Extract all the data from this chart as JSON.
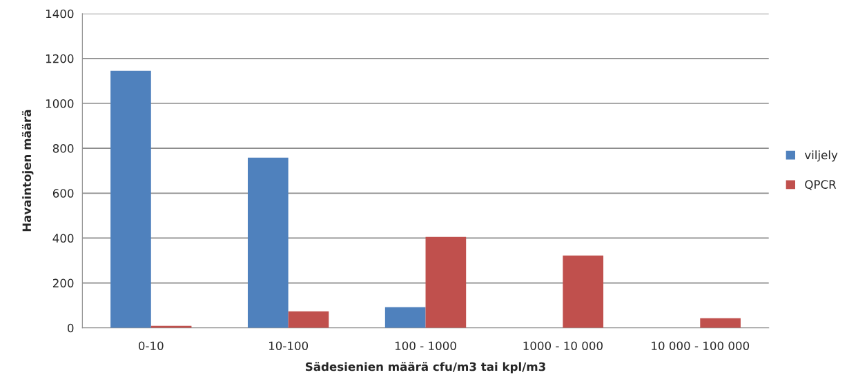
{
  "chart_data": {
    "type": "bar",
    "xlabel": "Sädesienien määrä cfu/m3 tai kpl/m3",
    "ylabel": "Havaintojen määrä",
    "categories": [
      "0-10",
      "10-100",
      "100 - 1000",
      "1000 - 10 000",
      "10 000 - 100 000"
    ],
    "series": [
      {
        "name": "viljely",
        "color": "#4f81bd",
        "values": [
          1145,
          758,
          92,
          0,
          0
        ]
      },
      {
        "name": "QPCR",
        "color": "#c0504d",
        "values": [
          9,
          74,
          405,
          322,
          43
        ]
      }
    ],
    "ylim": [
      0,
      1400
    ],
    "yticks": [
      0,
      200,
      400,
      600,
      800,
      1000,
      1200,
      1400
    ],
    "grid": "y",
    "legend": "right"
  }
}
